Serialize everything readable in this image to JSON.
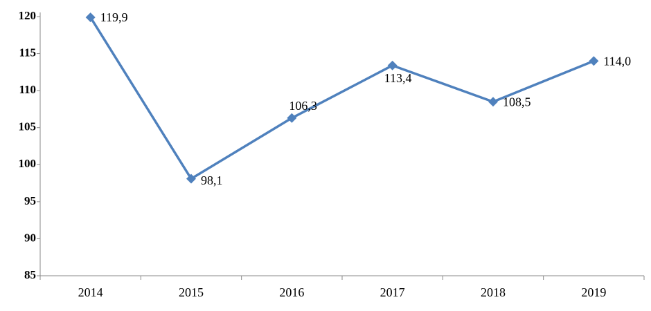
{
  "chart_data": {
    "type": "line",
    "categories": [
      "2014",
      "2015",
      "2016",
      "2017",
      "2018",
      "2019"
    ],
    "values": [
      119.9,
      98.1,
      106.3,
      113.4,
      108.5,
      114.0
    ],
    "value_labels": [
      "119,9",
      "98,1",
      "106,3",
      "113,4",
      "108,5",
      "114,0"
    ],
    "color": "#4f81bd",
    "ylim": [
      85,
      120
    ],
    "yticks": [
      85,
      90,
      95,
      100,
      105,
      110,
      115,
      120
    ],
    "grid": false
  }
}
